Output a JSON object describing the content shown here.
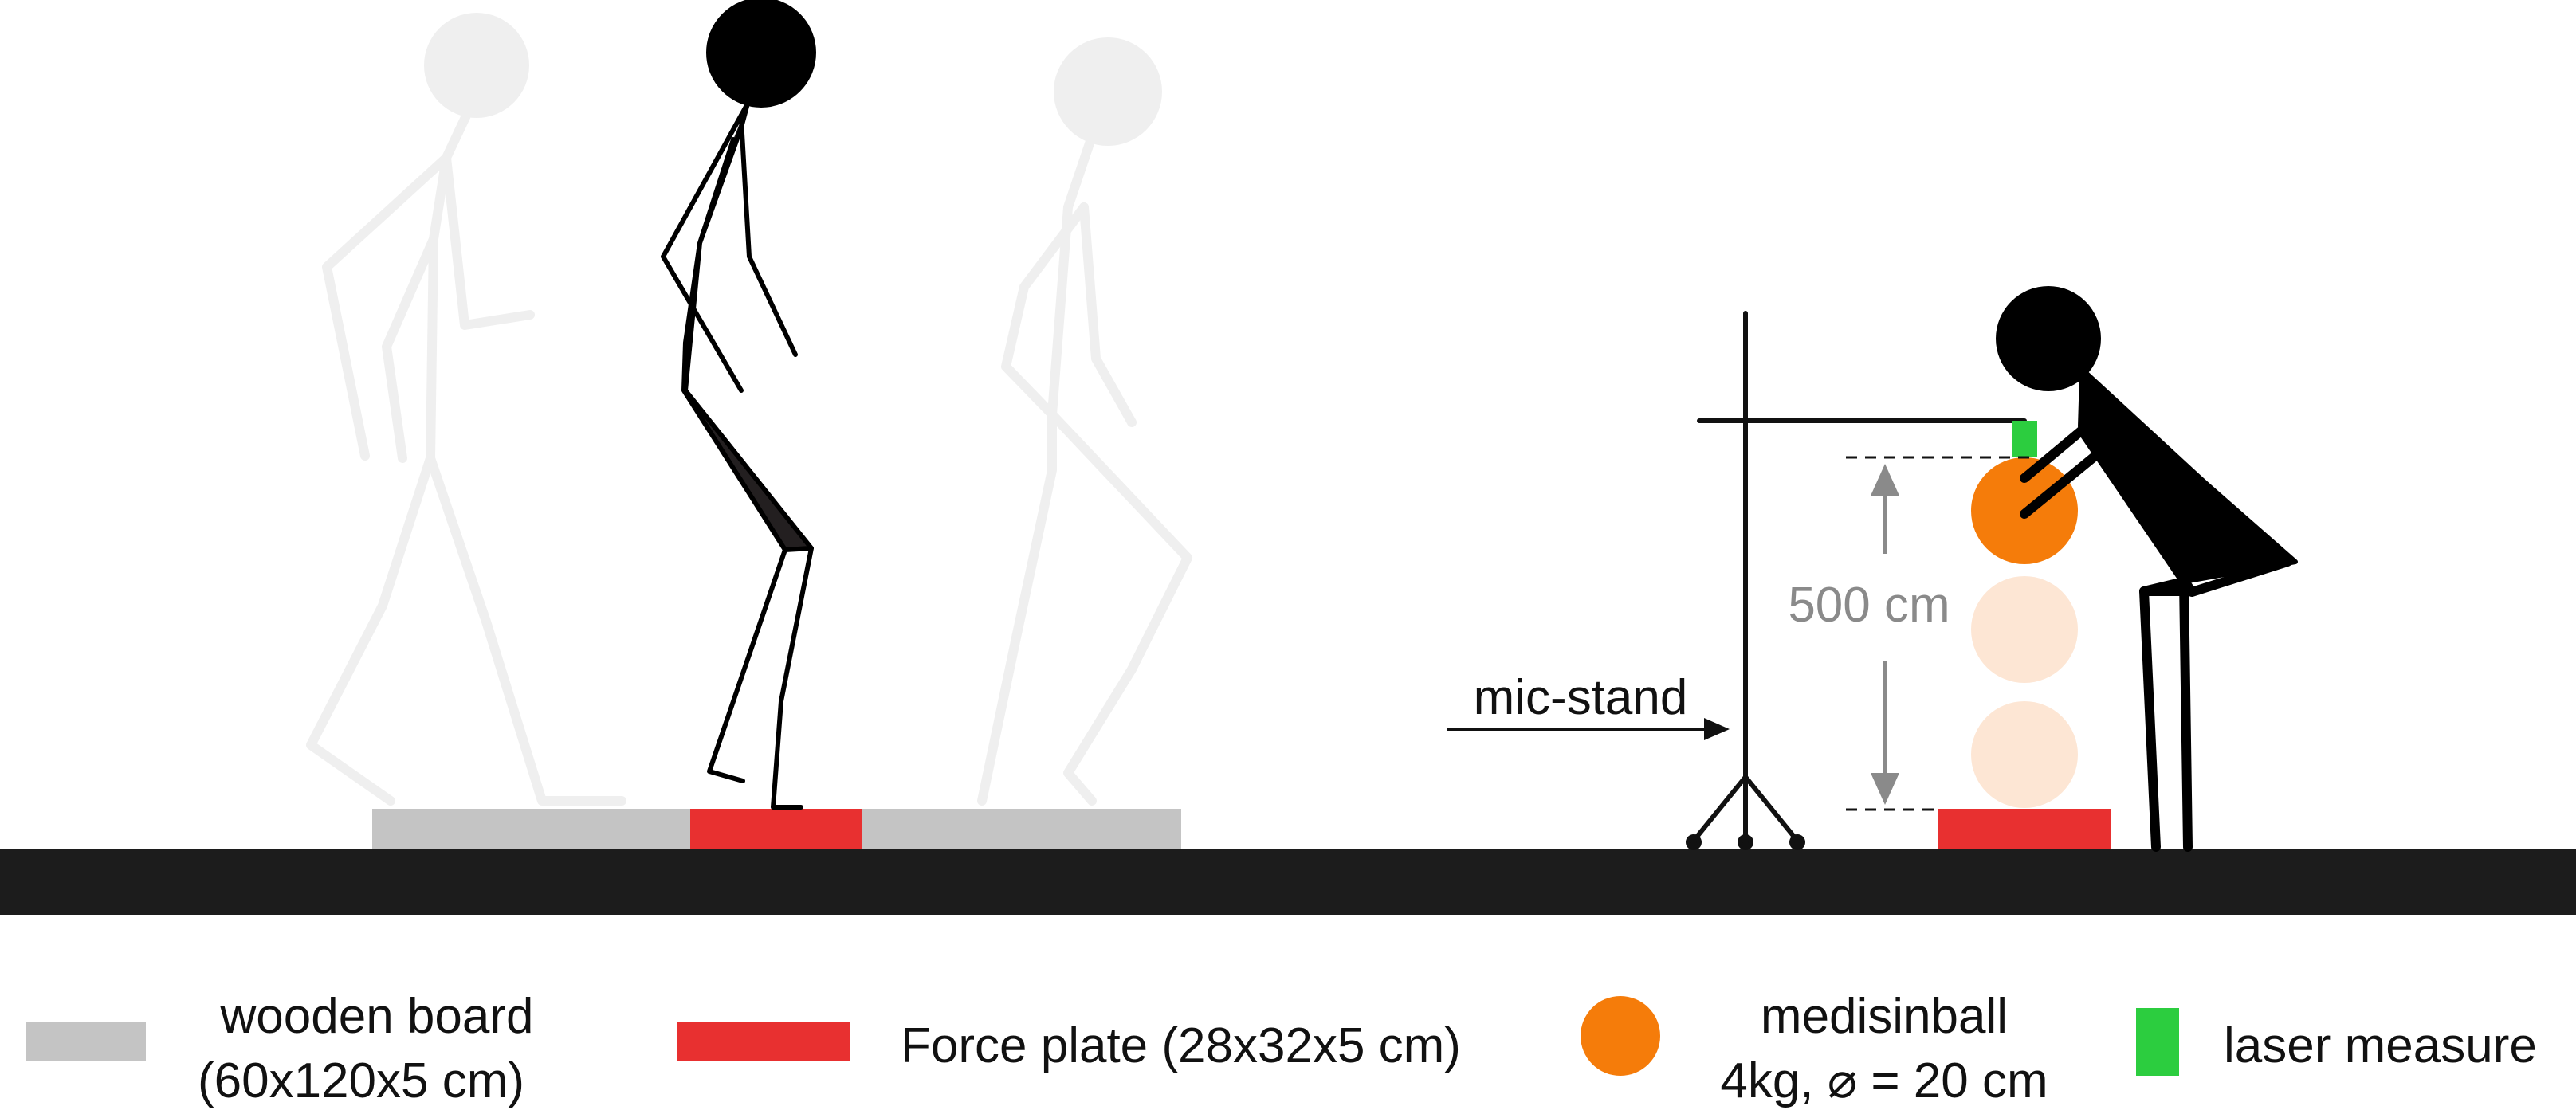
{
  "colors": {
    "floor": "#1c1c1c",
    "wooden_board": "#c4c4c4",
    "force_plate": "#e83030",
    "medicine_ball": "#f57c0a",
    "medicine_ball_ghost": "#fde6d4",
    "laser": "#2ccd3f",
    "ghost_figure": "#efefef",
    "figure": "#000000",
    "dimension": "#8a8a8a"
  },
  "annotations": {
    "mic_stand": "mic-stand",
    "height": "500 cm"
  },
  "legend": {
    "wooden_board_line1": "wooden board",
    "wooden_board_line2": "(60x120x5 cm)",
    "force_plate": "Force plate (28x32x5 cm)",
    "medball_line1": "medisinball",
    "medball_line2": "4kg, ⌀ = 20 cm",
    "laser": "laser measure"
  }
}
